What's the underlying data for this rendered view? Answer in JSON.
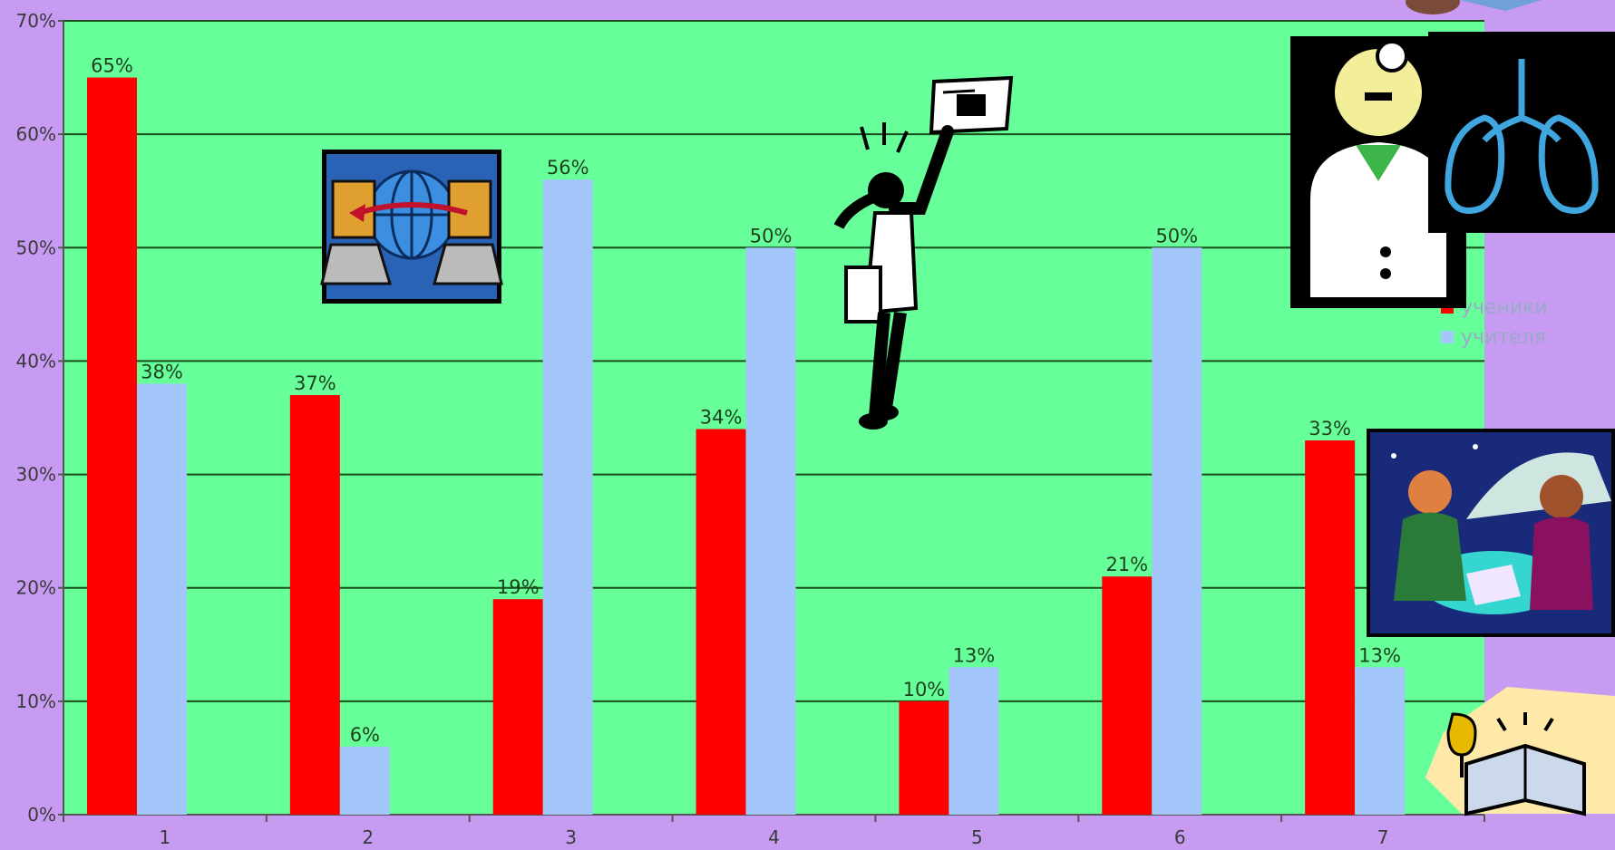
{
  "chart_data": {
    "type": "bar",
    "title": "",
    "xlabel": "",
    "ylabel": "",
    "categories": [
      "1",
      "2",
      "3",
      "4",
      "5",
      "6",
      "7"
    ],
    "y_ticks": [
      "0%",
      "10%",
      "20%",
      "30%",
      "40%",
      "50%",
      "60%",
      "70%"
    ],
    "ylim": [
      0,
      70
    ],
    "y_unit": "%",
    "grid": true,
    "legend_position": "right",
    "series": [
      {
        "name": "ученики",
        "color": "#ff0000",
        "values": [
          65,
          37,
          19,
          34,
          10,
          21,
          33
        ],
        "labels": [
          "65%",
          "37%",
          "19%",
          "34%",
          "10%",
          "21%",
          "33%"
        ]
      },
      {
        "name": "учителя",
        "color": "#a3c6fb",
        "values": [
          38,
          6,
          56,
          50,
          13,
          50,
          13
        ],
        "labels": [
          "38%",
          "6%",
          "56%",
          "50%",
          "13%",
          "50%",
          "13%"
        ]
      }
    ],
    "colors": {
      "page_background": "#c79bf2",
      "plot_background": "#66ff99",
      "gridline": "#1a4d1a"
    }
  },
  "illustrations": [
    {
      "name": "computer-network-icon"
    },
    {
      "name": "girl-with-newspaper-icon"
    },
    {
      "name": "doctor-icon"
    },
    {
      "name": "lungs-icon"
    },
    {
      "name": "women-cafe-icon"
    },
    {
      "name": "book-and-goblet-icon"
    }
  ]
}
